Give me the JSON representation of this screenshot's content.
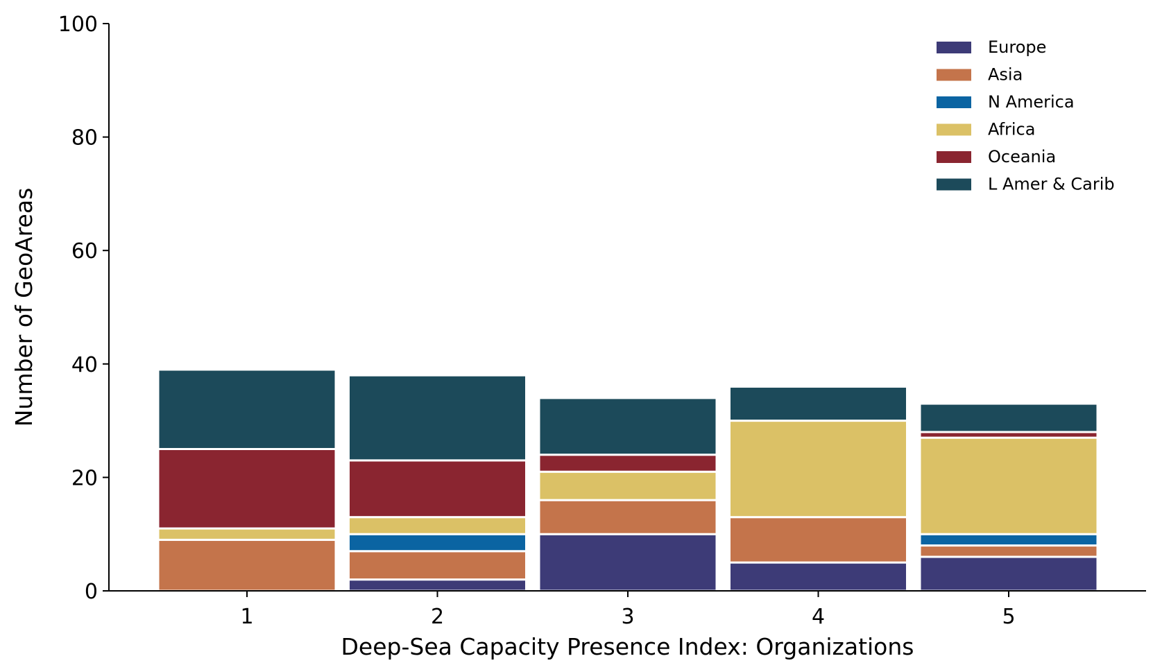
{
  "chart_data": {
    "type": "bar",
    "stacked": true,
    "title": "",
    "xlabel": "Deep-Sea Capacity Presence Index: Organizations",
    "ylabel": "Number of GeoAreas",
    "categories": [
      "1",
      "2",
      "3",
      "4",
      "5"
    ],
    "ylim": [
      0,
      100
    ],
    "yticks": [
      0,
      20,
      40,
      60,
      80,
      100
    ],
    "grid": false,
    "legend_position": "top-right",
    "series": [
      {
        "name": "Europe",
        "color": "#3d3b77",
        "values": [
          0,
          2,
          10,
          5,
          6
        ]
      },
      {
        "name": "Asia",
        "color": "#c4744b",
        "values": [
          9,
          5,
          6,
          8,
          2
        ]
      },
      {
        "name": "N America",
        "color": "#0b64a2",
        "values": [
          0,
          3,
          0,
          0,
          2
        ]
      },
      {
        "name": "Africa",
        "color": "#dbc166",
        "values": [
          2,
          3,
          5,
          17,
          17
        ]
      },
      {
        "name": "Oceania",
        "color": "#8a2530",
        "values": [
          14,
          10,
          3,
          0,
          1
        ]
      },
      {
        "name": "L Amer & Carib",
        "color": "#1c4a5a",
        "values": [
          14,
          15,
          10,
          6,
          5
        ]
      }
    ]
  }
}
